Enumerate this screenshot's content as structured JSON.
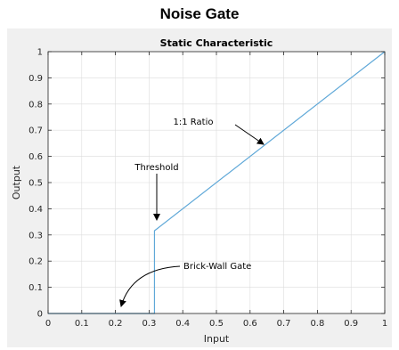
{
  "page_title": "Noise Gate",
  "colors": {
    "line": "#5fa8d8",
    "figure_bg": "#f0f0f0",
    "axes_bg": "#ffffff",
    "grid": "#dcdcdc"
  },
  "chart_data": {
    "type": "line",
    "title": "Static Characteristic",
    "xlabel": "Input",
    "ylabel": "Output",
    "xlim": [
      0,
      1
    ],
    "ylim": [
      0,
      1
    ],
    "xticks": [
      "0",
      "0.1",
      "0.2",
      "0.3",
      "0.4",
      "0.5",
      "0.6",
      "0.7",
      "0.8",
      "0.9",
      "1"
    ],
    "yticks": [
      "0",
      "0.1",
      "0.2",
      "0.3",
      "0.4",
      "0.5",
      "0.6",
      "0.7",
      "0.8",
      "0.9",
      "1"
    ],
    "grid": true,
    "series": [
      {
        "x": [
          0,
          0.316,
          0.316,
          1
        ],
        "y": [
          0,
          0,
          0.316,
          1
        ]
      }
    ],
    "annotations": {
      "ratio": {
        "text": "1:1 Ratio",
        "point_x": 0.645,
        "point_y": 0.645
      },
      "threshold": {
        "text": "Threshold",
        "point_x": 0.316,
        "point_y": 0.36
      },
      "brickwall": {
        "text": "Brick-Wall Gate",
        "point_x": 0.22,
        "point_y": 0.02
      }
    }
  }
}
